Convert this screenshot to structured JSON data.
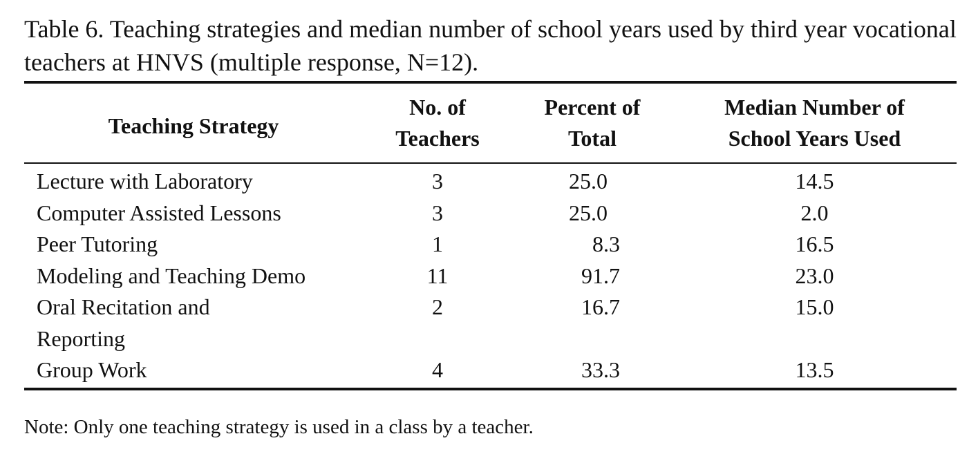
{
  "caption": "Table 6. Teaching strategies and median number of school years used by third year vocational teachers at HNVS (multiple response, N=12).",
  "headers": {
    "strategy": "Teaching Strategy",
    "teachers_line1": "No. of",
    "teachers_line2": "Teachers",
    "percent_line1": "Percent of",
    "percent_line2": "Total",
    "median_line1": "Median Number of",
    "median_line2": "School Years Used"
  },
  "rows": [
    {
      "strategy": "Lecture with Laboratory",
      "teachers": "3",
      "percent": "25.0",
      "median": "14.5"
    },
    {
      "strategy": "Computer Assisted Lessons",
      "teachers": "3",
      "percent": "25.0",
      "median": "2.0"
    },
    {
      "strategy": "Peer Tutoring",
      "teachers": "1",
      "percent": "8.3",
      "median": "16.5"
    },
    {
      "strategy": "Modeling and Teaching Demo",
      "teachers": "11",
      "percent": "91.7",
      "median": "23.0"
    },
    {
      "strategy": "Oral Recitation and Reporting",
      "teachers": "2",
      "percent": "16.7",
      "median": "15.0"
    },
    {
      "strategy": "Group Work",
      "teachers": "4",
      "percent": "33.3",
      "median": "13.5"
    }
  ],
  "note": "Note: Only one teaching strategy is used in a class by a teacher."
}
